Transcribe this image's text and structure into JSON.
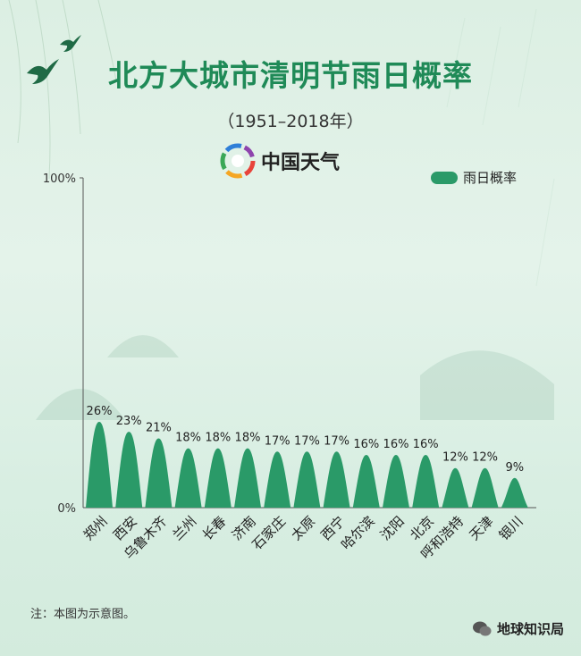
{
  "header": {
    "title": "北方大城市清明节雨日概率",
    "subtitle": "（1951–2018年）",
    "brand": "中国天气"
  },
  "footer": {
    "note": "注：本图为示意图。",
    "watermark": "地球知识局"
  },
  "colors": {
    "bar": "#2a9a68",
    "title": "#1f8a57"
  },
  "icons": [
    "swallow-icon",
    "weather-china-logo-icon",
    "wechat-icon"
  ],
  "chart_data": {
    "type": "bar",
    "legend": {
      "label": "雨日概率",
      "position": "top-right"
    },
    "categories": [
      "郑州",
      "西安",
      "乌鲁木齐",
      "兰州",
      "长春",
      "济南",
      "石家庄",
      "太原",
      "西宁",
      "哈尔滨",
      "沈阳",
      "北京",
      "呼和浩特",
      "天津",
      "银川"
    ],
    "series": [
      {
        "name": "雨日概率",
        "values": [
          26,
          23,
          21,
          18,
          18,
          18,
          17,
          17,
          17,
          16,
          16,
          16,
          12,
          12,
          9
        ]
      }
    ],
    "ylim": [
      0,
      100
    ],
    "y_ticks": [
      "0%",
      "100%"
    ],
    "value_suffix": "%",
    "grid": false
  }
}
